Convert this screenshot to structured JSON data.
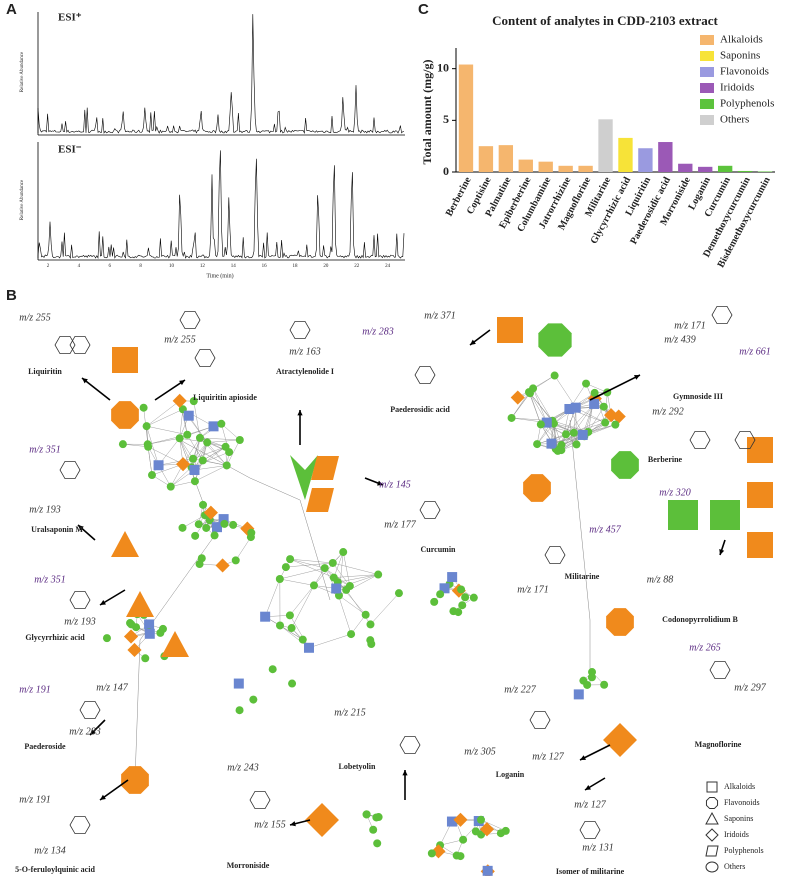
{
  "chart_data": {
    "type": "bar",
    "panel": "C",
    "title": "Content of analytes in CDD-2103 extract",
    "y_label": "Total amount (mg/g)",
    "categories": [
      "Berberine",
      "Coptisine",
      "Palmatine",
      "Epiberberine",
      "Columbamine",
      "Jatrorrhizine",
      "Magnoflorine",
      "Militarine",
      "Glycyrrhizic acid",
      "Liquiritin",
      "Paederosidic acid",
      "Morroniside",
      "Loganin",
      "Curcumin",
      "Demethoxycurcumin",
      "Bisdemethoxycurcumin"
    ],
    "series": [
      {
        "name": "Alkaloids",
        "color": "#f5b66e",
        "values": [
          10.4,
          2.5,
          2.6,
          1.2,
          1.0,
          0.6,
          0.6,
          null,
          null,
          null,
          null,
          null,
          null,
          null,
          null,
          null
        ]
      },
      {
        "name": "Saponins",
        "color": "#f7e338",
        "values": [
          null,
          null,
          null,
          null,
          null,
          null,
          null,
          null,
          3.3,
          null,
          null,
          null,
          null,
          null,
          null,
          null
        ]
      },
      {
        "name": "Flavonoids",
        "color": "#9a9ae0",
        "values": [
          null,
          null,
          null,
          null,
          null,
          null,
          null,
          null,
          null,
          2.3,
          null,
          null,
          null,
          null,
          null,
          null
        ]
      },
      {
        "name": "Iridoids",
        "color": "#9b59b6",
        "values": [
          null,
          null,
          null,
          null,
          null,
          null,
          null,
          null,
          null,
          null,
          2.9,
          0.8,
          0.5,
          null,
          null,
          null
        ]
      },
      {
        "name": "Polyphenols",
        "color": "#5cc33c",
        "values": [
          null,
          null,
          null,
          null,
          null,
          null,
          null,
          null,
          null,
          null,
          null,
          null,
          null,
          0.6,
          0.1,
          0.05
        ]
      },
      {
        "name": "Others",
        "color": "#cfcfcf",
        "values": [
          null,
          null,
          null,
          null,
          null,
          null,
          null,
          5.1,
          null,
          null,
          null,
          null,
          null,
          null,
          null,
          null
        ]
      }
    ],
    "ylim": [
      0,
      12
    ],
    "yticks": [
      0,
      5,
      10
    ],
    "grid": false,
    "legend": "upper right"
  },
  "panel_a": {
    "label": "A",
    "esi_pos": "ESI⁺",
    "esi_neg": "ESI⁻",
    "y_label": "Relative Abundance",
    "x_label": "Time (min)",
    "xticks": [
      "2",
      "4",
      "6",
      "8",
      "10",
      "12",
      "14",
      "16",
      "18",
      "20",
      "22",
      "24"
    ]
  },
  "panel_b": {
    "label": "B",
    "labels": [
      "Liquiritin",
      "m/z 255",
      "m/z 255",
      "Liquiritin apioside",
      "Atractylenolide I",
      "m/z 163",
      "m/z 283",
      "m/z 371",
      "Paederosidic acid",
      "Gymnoside III",
      "m/z 171",
      "m/z 439",
      "m/z 661",
      "m/z 292",
      "Berberine",
      "m/z 320",
      "Codonopyrrolidium B",
      "m/z 88",
      "m/z 351",
      "m/z 193",
      "Uralsaponin M",
      "m/z 351",
      "m/z 193",
      "Glycyrrhizic acid",
      "m/z 145",
      "m/z 177",
      "Curcumin",
      "m/z 457",
      "m/z 171",
      "Militarine",
      "m/z 265",
      "m/z 297",
      "Magnoflorine",
      "m/z 191",
      "m/z 147",
      "m/z 283",
      "Paederoside",
      "m/z 215",
      "m/z 305",
      "Lobetyolin",
      "m/z 227",
      "m/z 127",
      "Loganin",
      "m/z 243",
      "m/z 155",
      "Morroniside",
      "m/z 191",
      "m/z 134",
      "5-O-feruloylquinic acid",
      "m/z 127",
      "m/z 131",
      "Isomer of militarine"
    ],
    "legend": [
      "Alkaloids",
      "Flavonoids",
      "Saponins",
      "Iridoids",
      "Polyphenols",
      "Others"
    ]
  }
}
